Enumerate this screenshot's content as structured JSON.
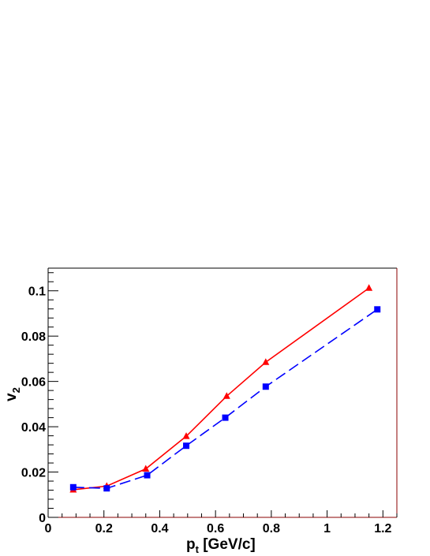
{
  "chart_data": {
    "type": "line",
    "title": "",
    "xlabel": {
      "main": "p",
      "sub": "t",
      "rest": " [GeV/c]"
    },
    "ylabel": {
      "main": "v",
      "sub": "2"
    },
    "xlim": [
      0,
      1.25
    ],
    "ylim": [
      0,
      0.11
    ],
    "x_ticks": [
      0,
      0.2,
      0.4,
      0.6,
      0.8,
      1,
      1.2
    ],
    "x_tick_labels": [
      "0",
      "0.2",
      "0.4",
      "0.6",
      "0.8",
      "1",
      "1.2"
    ],
    "y_ticks": [
      0,
      0.02,
      0.04,
      0.06,
      0.08,
      0.1
    ],
    "y_tick_labels": [
      "0",
      "0.02",
      "0.04",
      "0.06",
      "0.08",
      "0.1"
    ],
    "grid": false,
    "legend": false,
    "series": [
      {
        "color": "#ff0000",
        "marker": "triangle",
        "line_style": "solid",
        "x": [
          0.09,
          0.21,
          0.35,
          0.495,
          0.64,
          0.78,
          1.15
        ],
        "y": [
          0.0122,
          0.0138,
          0.0214,
          0.0358,
          0.0535,
          0.0685,
          0.1012
        ]
      },
      {
        "color": "#0000ff",
        "marker": "square",
        "line_style": "dashed",
        "x": [
          0.09,
          0.21,
          0.355,
          0.495,
          0.635,
          0.78,
          1.18
        ],
        "y": [
          0.0133,
          0.0128,
          0.0186,
          0.0316,
          0.044,
          0.0577,
          0.0918
        ]
      }
    ]
  }
}
